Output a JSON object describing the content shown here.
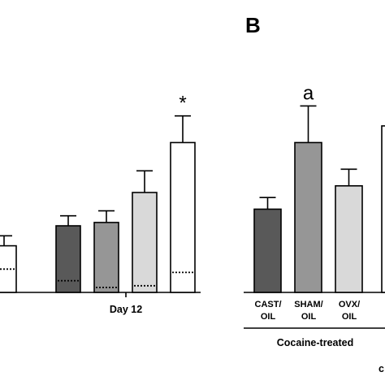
{
  "panels": {
    "b_letter": "B"
  },
  "chart_data": [
    {
      "type": "bar",
      "panel": "A (cropped)",
      "group_label": "Day 12",
      "ylim": [
        0,
        100
      ],
      "bars": [
        {
          "value": 28,
          "error": 6,
          "fill": "#ffffff",
          "dotted_baseline": 14
        },
        {
          "value": 40,
          "error": 6,
          "fill": "#595959",
          "dotted_baseline": 7
        },
        {
          "value": 42,
          "error": 7,
          "fill": "#969696",
          "dotted_baseline": 3
        },
        {
          "value": 60,
          "error": 13,
          "fill": "#d9d9d9",
          "dotted_baseline": 4
        },
        {
          "value": 90,
          "error": 16,
          "fill": "#ffffff",
          "dotted_baseline": 12,
          "annotation": "*"
        }
      ],
      "grid": false
    },
    {
      "type": "bar",
      "panel": "B (cropped)",
      "categories": [
        "CAST/\nOIL",
        "SHAM/\nOIL",
        "OVX/\nOIL",
        "",
        ""
      ],
      "group_label": "Cocaine-treated",
      "ylim": [
        0,
        100
      ],
      "bars": [
        {
          "category": "CAST/\nOIL",
          "value": 50,
          "error": 7,
          "fill": "#595959"
        },
        {
          "category": "SHAM/\nOIL",
          "value": 90,
          "error": 22,
          "fill": "#969696",
          "annotation": "a"
        },
        {
          "category": "OVX/\nOIL",
          "value": 64,
          "error": 10,
          "fill": "#d9d9d9"
        },
        {
          "category": "",
          "value": 100,
          "error": 0,
          "fill": "#ffffff"
        }
      ],
      "grid": false
    }
  ]
}
